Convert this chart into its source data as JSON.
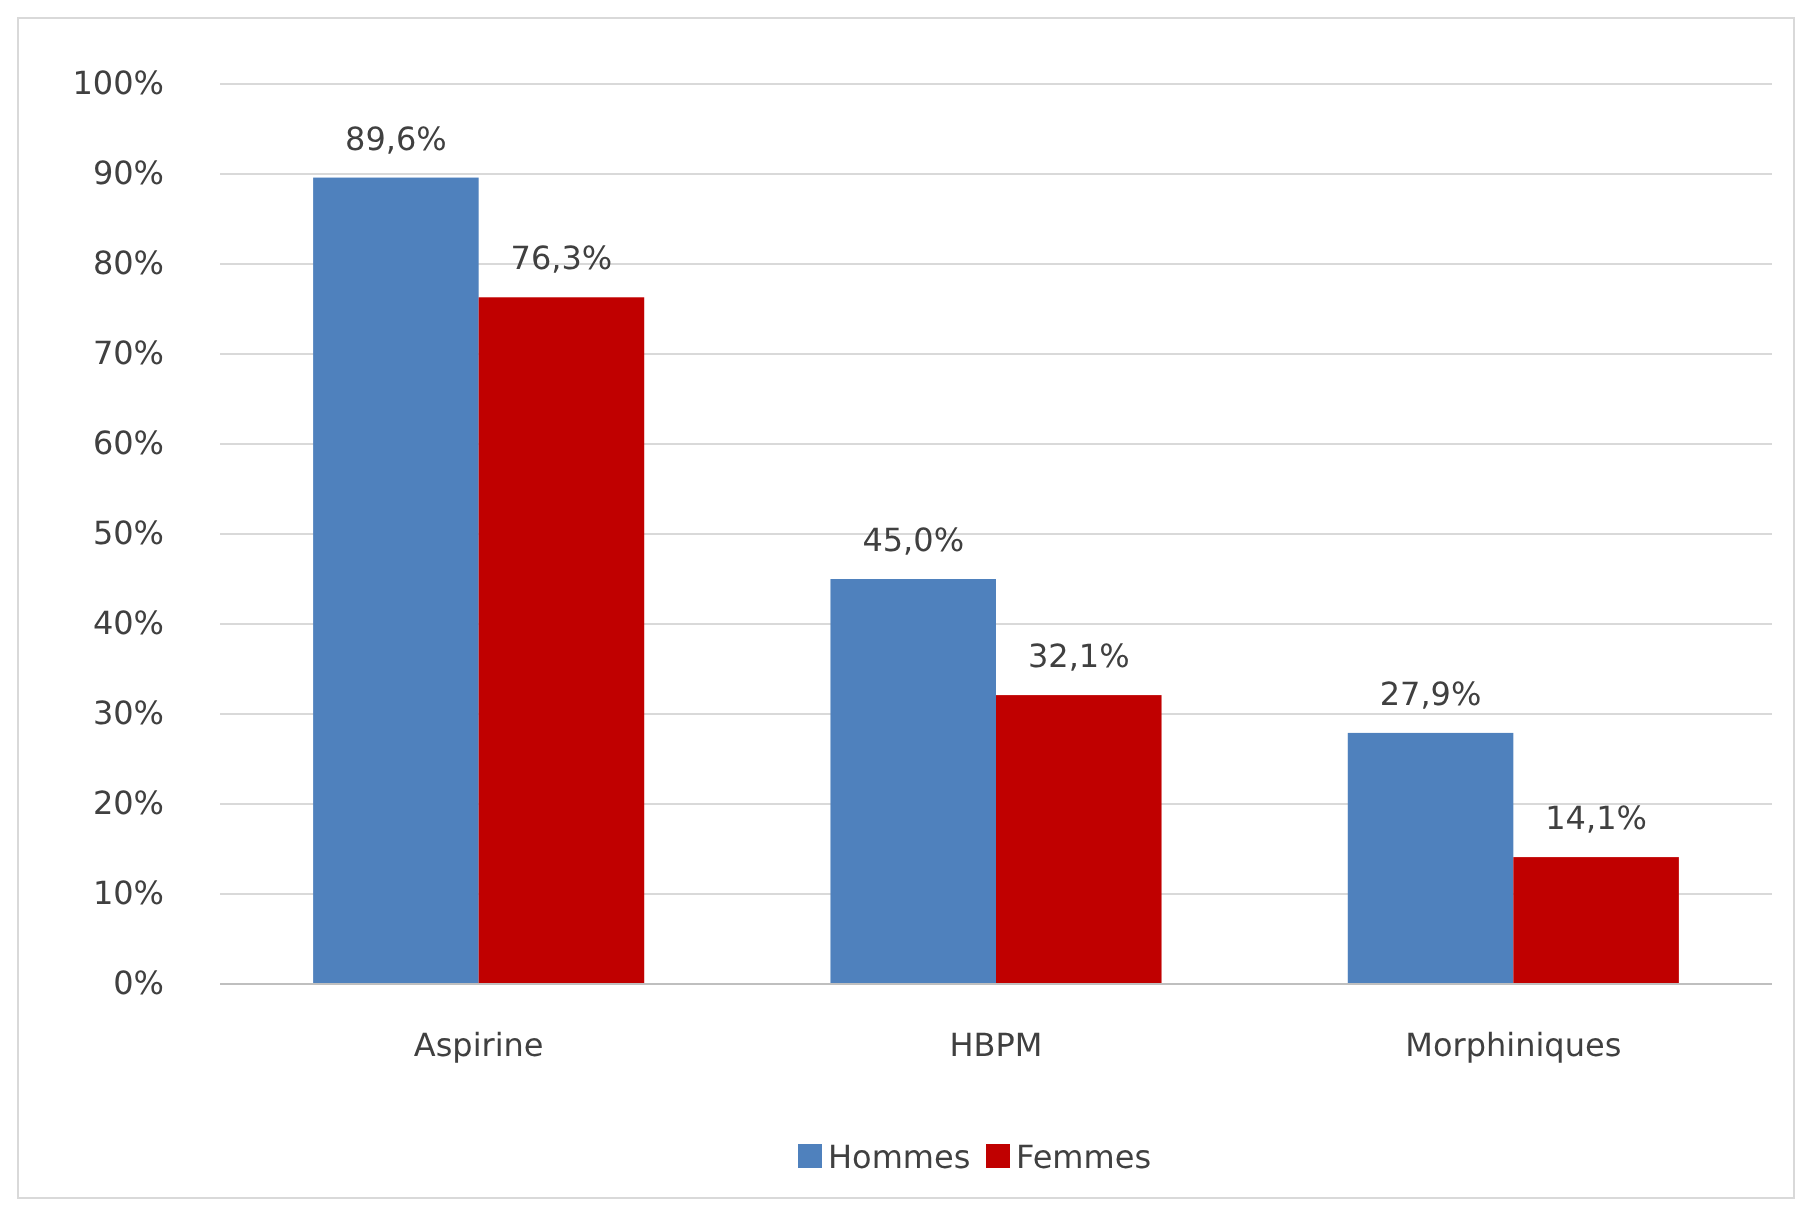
{
  "chart_data": {
    "type": "bar",
    "categories": [
      "Aspirine",
      "HBPM",
      "Morphiniques"
    ],
    "series": [
      {
        "name": "Hommes",
        "color": "#4f81bd",
        "values": [
          89.6,
          45.0,
          27.9
        ],
        "value_labels": [
          "89,6%",
          "45,0%",
          "27,9%"
        ]
      },
      {
        "name": "Femmes",
        "color": "#c00000",
        "values": [
          76.3,
          32.1,
          14.1
        ],
        "value_labels": [
          "76,3%",
          "32,1%",
          "14,1%"
        ]
      }
    ],
    "ylim": [
      0,
      100
    ],
    "yticks": [
      {
        "value": 0,
        "label": "0%"
      },
      {
        "value": 10,
        "label": "10%"
      },
      {
        "value": 20,
        "label": "20%"
      },
      {
        "value": 30,
        "label": "30%"
      },
      {
        "value": 40,
        "label": "40%"
      },
      {
        "value": 50,
        "label": "50%"
      },
      {
        "value": 60,
        "label": "60%"
      },
      {
        "value": 70,
        "label": "70%"
      },
      {
        "value": 80,
        "label": "80%"
      },
      {
        "value": 90,
        "label": "90%"
      },
      {
        "value": 100,
        "label": "100%"
      }
    ],
    "grid": "y",
    "legend": "bottom"
  }
}
